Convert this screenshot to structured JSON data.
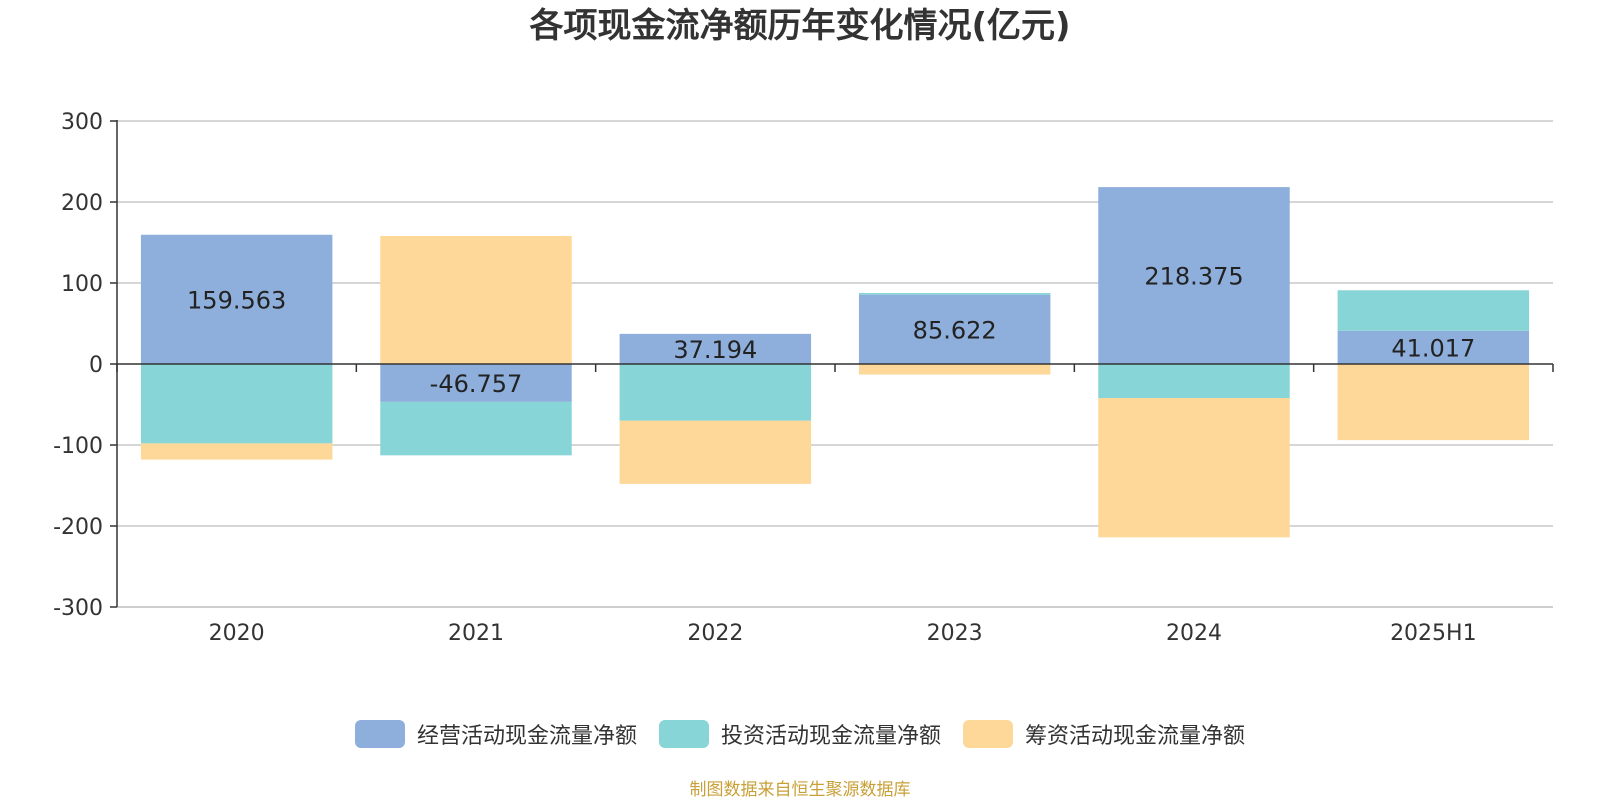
{
  "chart_data": {
    "type": "bar",
    "stacked": true,
    "title": "各项现金流净额历年变化情况(亿元)",
    "categories": [
      "2020",
      "2021",
      "2022",
      "2023",
      "2024",
      "2025H1"
    ],
    "ylim": [
      -300,
      300
    ],
    "yticks": [
      300,
      200,
      100,
      0,
      -100,
      -200,
      -300
    ],
    "grid": true,
    "legend_position": "bottom",
    "series": [
      {
        "name": "经营活动现金流量净额",
        "color": "#8EAEDC",
        "values": [
          159.563,
          -46.757,
          37.194,
          85.622,
          218.375,
          41.017
        ],
        "labels": [
          "159.563",
          "-46.757",
          "37.194",
          "85.622",
          "218.375",
          "41.017"
        ]
      },
      {
        "name": "投资活动现金流量净额",
        "color": "#87D5D6",
        "values": [
          -98,
          -66,
          -70,
          2,
          -42,
          50
        ]
      },
      {
        "name": "筹资活动现金流量净额",
        "color": "#FED899",
        "values": [
          -20,
          158,
          -78,
          -13,
          -172,
          -94
        ]
      }
    ]
  },
  "source_note": {
    "text": "制图数据来自恒生聚源数据库",
    "color": "#C9A038"
  }
}
